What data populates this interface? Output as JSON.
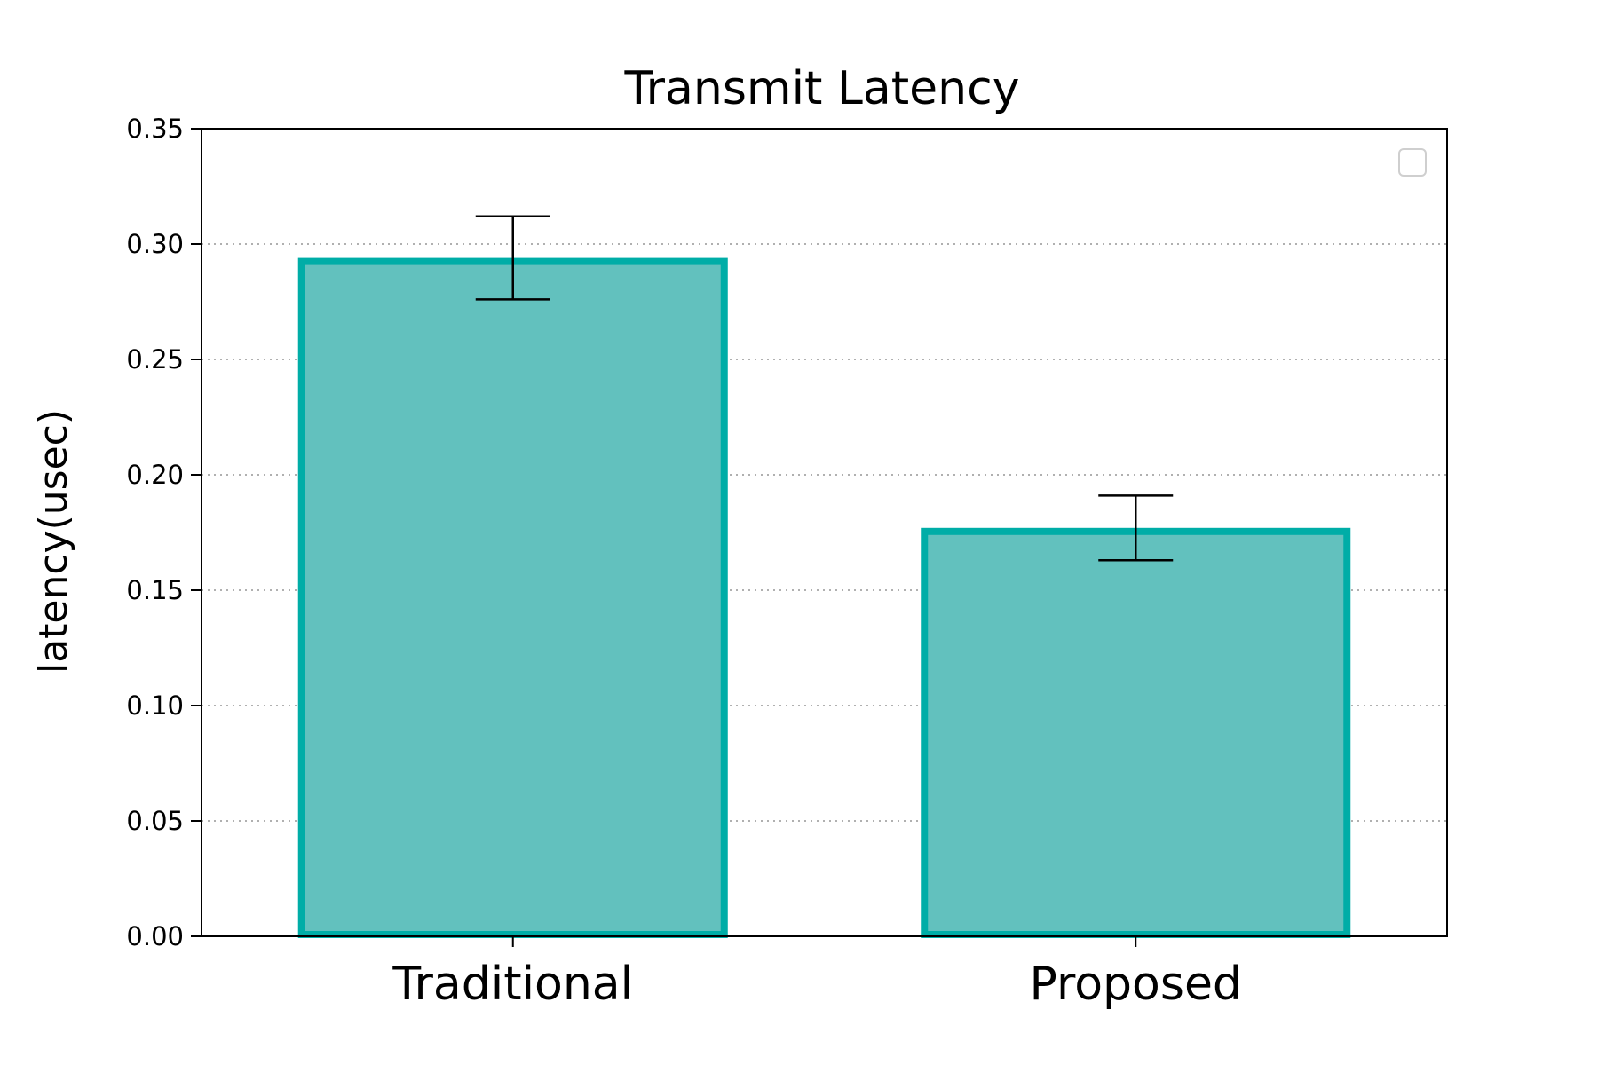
{
  "chart_data": {
    "type": "bar",
    "title": "Transmit Latency",
    "xlabel": "",
    "ylabel": "latency(usec)",
    "categories": [
      "Traditional",
      "Proposed"
    ],
    "values": [
      0.294,
      0.177
    ],
    "errors": [
      0.018,
      0.014
    ],
    "ylim": [
      0,
      0.35
    ],
    "yticks": [
      "0.00",
      "0.05",
      "0.10",
      "0.15",
      "0.20",
      "0.25",
      "0.30",
      "0.35"
    ],
    "grid": true,
    "legend": "top-right",
    "colors": {
      "bar_fill": "#62c1be",
      "bar_edge": "#00ada7",
      "grid": "#b0b0b0",
      "errorbar": "#000000"
    }
  }
}
